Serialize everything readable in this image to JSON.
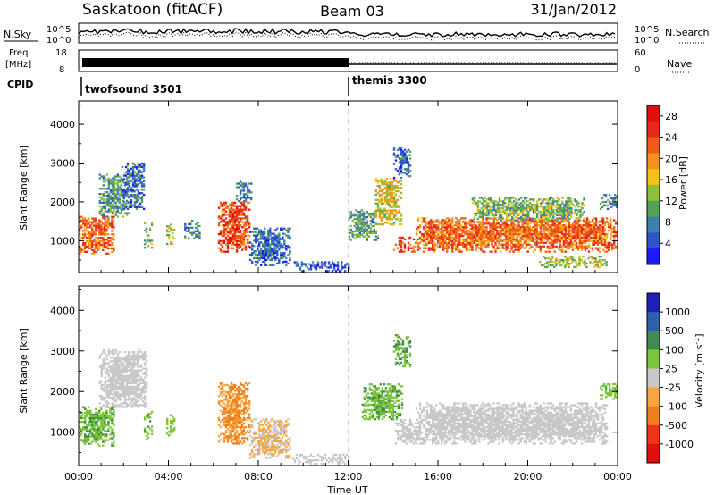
{
  "header": {
    "title": "Saskatoon (fitACF)",
    "beam": "Beam 03",
    "date": "31/Jan/2012"
  },
  "panels": {
    "nsky_label": "N.Sky",
    "nsky_ticks": [
      "10^5",
      "10^0"
    ],
    "nsearch_label": "N.Search",
    "nsearch_ticks": [
      "10^5",
      "10^0"
    ],
    "freq_label_line1": "Freq.",
    "freq_label_line2": "[MHz]",
    "freq_ticks": [
      "18",
      "8"
    ],
    "nave_label": "Nave",
    "nave_ticks": [
      "60",
      "0"
    ],
    "cpid_label": "CPID",
    "cpid_modes": [
      {
        "name": "twofsound 3501",
        "start_hour": 0
      },
      {
        "name": "themis 3300",
        "start_hour": 12
      }
    ]
  },
  "chart_data": [
    {
      "type": "heatmap",
      "name": "power-panel",
      "xlabel": "",
      "ylabel": "Slant Range [km]",
      "x_range_hours": [
        0,
        24
      ],
      "ylim": [
        180,
        4600
      ],
      "yticks": [
        "1000",
        "2000",
        "3000",
        "4000"
      ],
      "colorbar": {
        "label": "Power [dB]",
        "ticks": [
          "4",
          "8",
          "12",
          "16",
          "20",
          "24",
          "28"
        ],
        "range": [
          0,
          30
        ],
        "colors": [
          "#1a1aff",
          "#2f54c8",
          "#3d7fae",
          "#55a05a",
          "#8fc03d",
          "#f2c21a",
          "#f5921e",
          "#ef5a18",
          "#e8281a",
          "#e01010"
        ]
      },
      "features": [
        {
          "start": 0.0,
          "end": 1.6,
          "r_min": 650,
          "r_max": 1600,
          "level": 22
        },
        {
          "start": 0.9,
          "end": 2.2,
          "r_min": 1600,
          "r_max": 2700,
          "level": 10
        },
        {
          "start": 1.9,
          "end": 2.9,
          "r_min": 1800,
          "r_max": 3000,
          "level": 6
        },
        {
          "start": 2.9,
          "end": 3.3,
          "r_min": 800,
          "r_max": 1500,
          "level": 12
        },
        {
          "start": 3.9,
          "end": 4.3,
          "r_min": 900,
          "r_max": 1400,
          "level": 14
        },
        {
          "start": 4.7,
          "end": 5.4,
          "r_min": 1000,
          "r_max": 1500,
          "level": 8
        },
        {
          "start": 6.2,
          "end": 7.6,
          "r_min": 700,
          "r_max": 2000,
          "level": 24
        },
        {
          "start": 7.0,
          "end": 7.7,
          "r_min": 2000,
          "r_max": 2500,
          "level": 8
        },
        {
          "start": 7.6,
          "end": 9.4,
          "r_min": 350,
          "r_max": 1300,
          "level": 6
        },
        {
          "start": 9.5,
          "end": 12.0,
          "r_min": 200,
          "r_max": 450,
          "level": 5
        },
        {
          "start": 12.0,
          "end": 13.3,
          "r_min": 1000,
          "r_max": 1800,
          "level": 10
        },
        {
          "start": 13.2,
          "end": 14.4,
          "r_min": 1400,
          "r_max": 2600,
          "level": 16
        },
        {
          "start": 14.0,
          "end": 14.8,
          "r_min": 2600,
          "r_max": 3400,
          "level": 6
        },
        {
          "start": 14.0,
          "end": 15.0,
          "r_min": 700,
          "r_max": 1100,
          "level": 24
        },
        {
          "start": 15.0,
          "end": 23.9,
          "r_min": 700,
          "r_max": 1600,
          "level": 22
        },
        {
          "start": 17.5,
          "end": 22.5,
          "r_min": 1500,
          "r_max": 2100,
          "level": 12
        },
        {
          "start": 20.5,
          "end": 23.5,
          "r_min": 300,
          "r_max": 600,
          "level": 14
        },
        {
          "start": 23.2,
          "end": 24.0,
          "r_min": 1800,
          "r_max": 2200,
          "level": 8
        }
      ]
    },
    {
      "type": "heatmap",
      "name": "velocity-panel",
      "xlabel": "Time UT",
      "ylabel": "Slant Range [km]",
      "x_range_hours": [
        0,
        24
      ],
      "xticks": [
        "00:00",
        "04:00",
        "08:00",
        "12:00",
        "16:00",
        "20:00",
        "00:00"
      ],
      "ylim": [
        180,
        4600
      ],
      "yticks": [
        "1000",
        "2000",
        "3000",
        "4000"
      ],
      "colorbar": {
        "label": "Velocity [m s^-1]",
        "ticks": [
          "1000",
          "500",
          "100",
          "25",
          "-25",
          "-100",
          "-500",
          "-1000"
        ],
        "range": [
          -1200,
          1200
        ],
        "colors": [
          "#2020b8",
          "#2e5fa8",
          "#3f8c4e",
          "#7cc43a",
          "#c8c8c8",
          "#f5a640",
          "#ef7e1e",
          "#ed3418",
          "#e01010"
        ]
      },
      "features": [
        {
          "start": 0.0,
          "end": 1.6,
          "r_min": 650,
          "r_max": 1600,
          "level": -350
        },
        {
          "start": 0.9,
          "end": 3.0,
          "r_min": 1600,
          "r_max": 3000,
          "level": 0
        },
        {
          "start": 2.9,
          "end": 3.3,
          "r_min": 800,
          "r_max": 1500,
          "level": -300
        },
        {
          "start": 3.9,
          "end": 4.3,
          "r_min": 900,
          "r_max": 1400,
          "level": -250
        },
        {
          "start": 6.2,
          "end": 7.6,
          "r_min": 700,
          "r_max": 2200,
          "level": 400
        },
        {
          "start": 7.6,
          "end": 9.4,
          "r_min": 350,
          "r_max": 1300,
          "level": 150
        },
        {
          "start": 9.5,
          "end": 12.0,
          "r_min": 200,
          "r_max": 450,
          "level": 0
        },
        {
          "start": 12.6,
          "end": 14.4,
          "r_min": 1300,
          "r_max": 2200,
          "level": -350
        },
        {
          "start": 14.0,
          "end": 14.8,
          "r_min": 2600,
          "r_max": 3400,
          "level": -400
        },
        {
          "start": 14.0,
          "end": 15.2,
          "r_min": 700,
          "r_max": 1300,
          "level": 0
        },
        {
          "start": 15.0,
          "end": 23.5,
          "r_min": 700,
          "r_max": 1700,
          "level": 0
        },
        {
          "start": 23.2,
          "end": 24.0,
          "r_min": 1800,
          "r_max": 2200,
          "level": -300
        }
      ]
    }
  ]
}
